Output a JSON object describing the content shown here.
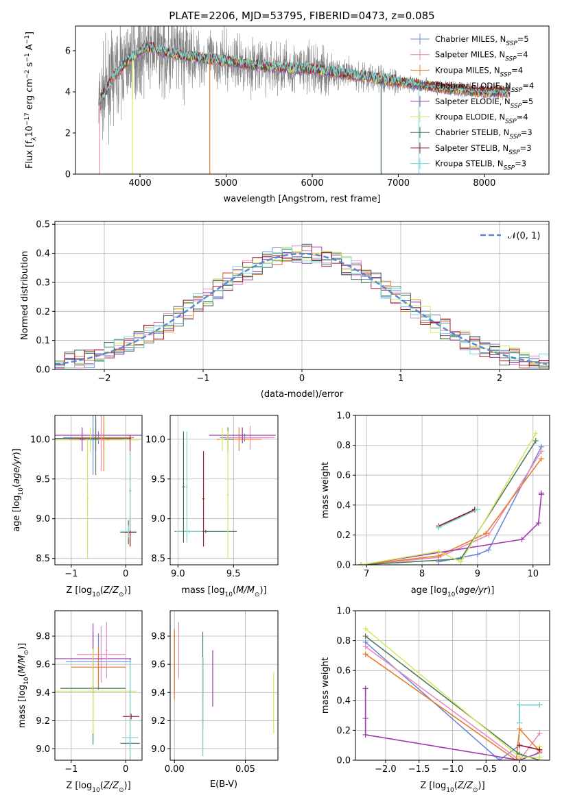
{
  "colors": {
    "series": [
      "#6a8ad8",
      "#e88ac0",
      "#e87d2a",
      "#4d7a5a",
      "#9d3aab",
      "#d4e860",
      "#3e6b55",
      "#9a1f2a",
      "#7fd6d6"
    ],
    "noise": "#808080",
    "gaussian": "#5b86d0"
  },
  "chart_data": [
    {
      "id": "spectrum",
      "type": "line",
      "title": "PLATE=2206, MJD=53795, FIBERID=0473, z=0.085",
      "xlabel": "wavelength [Angstrom, rest frame]",
      "ylabel": "Flux [f_λ10^-17 erg cm^-2 s^-1 A^-1]",
      "xlim": [
        3250,
        8750
      ],
      "ylim": [
        0,
        7.2
      ],
      "xticks": [
        4000,
        5000,
        6000,
        7000,
        8000
      ],
      "yticks": [
        0,
        2,
        4,
        6
      ],
      "xtick_labels": [
        "4000",
        "5000",
        "6000",
        "7000",
        "8000"
      ],
      "ytick_labels": [
        "0",
        "2",
        "4",
        "6"
      ],
      "continuum": {
        "x": [
          3500,
          3700,
          3900,
          4100,
          4300,
          4600,
          5000,
          5500,
          6000,
          6500,
          7000,
          7500,
          8000,
          8300
        ],
        "y": [
          3.3,
          4.8,
          5.7,
          6.2,
          5.9,
          5.7,
          5.5,
          5.2,
          5.1,
          4.8,
          4.5,
          4.2,
          4.0,
          4.0
        ]
      },
      "legend": [
        {
          "label": "Chabrier MILES, N",
          "sub": "SSP",
          "val": "=5"
        },
        {
          "label": "Salpeter MILES, N",
          "sub": "SSP",
          "val": "=4"
        },
        {
          "label": "Kroupa MILES, N",
          "sub": "SSP",
          "val": "=4"
        },
        {
          "label": "Chabrier ELODIE, N",
          "sub": "SSP",
          "val": "=4"
        },
        {
          "label": "Salpeter ELODIE, N",
          "sub": "SSP",
          "val": "=5"
        },
        {
          "label": "Kroupa ELODIE, N",
          "sub": "SSP",
          "val": "=4"
        },
        {
          "label": "Chabrier STELIB, N",
          "sub": "SSP",
          "val": "=3"
        },
        {
          "label": "Salpeter STELIB, N",
          "sub": "SSP",
          "val": "=3"
        },
        {
          "label": "Kroupa STELIB, N",
          "sub": "SSP",
          "val": "=3"
        }
      ],
      "legend_loc": "upper right"
    },
    {
      "id": "residuals",
      "type": "histogram",
      "xlabel": "(data-model)/error",
      "ylabel": "Normed distribution",
      "xlim": [
        -2.5,
        2.5
      ],
      "ylim": [
        0,
        0.51
      ],
      "xticks": [
        -2,
        -1,
        0,
        1,
        2
      ],
      "yticks": [
        0,
        0.1,
        0.2,
        0.3,
        0.4,
        0.5
      ],
      "xtick_labels": [
        "−2",
        "−1",
        "0",
        "1",
        "2"
      ],
      "ytick_labels": [
        "0.0",
        "0.1",
        "0.2",
        "0.3",
        "0.4",
        "0.5"
      ],
      "bin_width": 0.1,
      "gaussian_label": "𝒩(0, 1)",
      "legend_loc": "upper right"
    },
    {
      "id": "age_vs_Z",
      "type": "errorbar",
      "xlabel": "Z [log10(Z/Z⊙)]",
      "ylabel": "age [log10(age/yr)]",
      "xlim": [
        -1.3,
        0.3
      ],
      "ylim": [
        8.42,
        10.3
      ],
      "xticks": [
        -1,
        0
      ],
      "xtick_labels": [
        "−1",
        "0"
      ],
      "yticks": [
        8.5,
        9.0,
        9.5,
        10.0
      ],
      "ytick_labels": [
        "8.5",
        "9.0",
        "9.5",
        "10.0"
      ],
      "points": [
        {
          "x": -0.5,
          "y": 10.02,
          "xerr": 0.65,
          "yerr": 0.08,
          "c": 0
        },
        {
          "x": -0.55,
          "y": 10.0,
          "xerr": 0.5,
          "yerr": 0.15,
          "c": 1
        },
        {
          "x": -0.4,
          "y": 10.02,
          "xerr": 0.55,
          "yerr": 0.15,
          "c": 2
        },
        {
          "x": -0.6,
          "y": 10.01,
          "xerr": 0.7,
          "yerr": 0.15,
          "c": 3
        },
        {
          "x": -0.55,
          "y": 10.05,
          "xerr": 0.85,
          "yerr": 0.2,
          "c": 4
        },
        {
          "x": -0.65,
          "y": 9.99,
          "xerr": 0.9,
          "yerr": 0.15,
          "c": 5
        },
        {
          "x": 0.05,
          "y": 8.83,
          "xerr": 0.15,
          "yerr": 0.15,
          "c": 6
        },
        {
          "x": 0.08,
          "y": 8.83,
          "xerr": 0.1,
          "yerr": 0.17,
          "c": 7
        },
        {
          "x": 0.05,
          "y": 8.84,
          "xerr": 0.15,
          "yerr": 0.08,
          "c": 8
        },
        {
          "x": -0.6,
          "y": 10.0,
          "xerr": 0.1,
          "yerr": 0.45,
          "c": 0
        },
        {
          "x": -0.4,
          "y": 10.0,
          "xerr": 0.1,
          "yerr": 0.4,
          "c": 2
        },
        {
          "x": -0.45,
          "y": 10.0,
          "xerr": 0.1,
          "yerr": 0.4,
          "c": 1
        },
        {
          "x": -0.55,
          "y": 10.0,
          "xerr": 0.05,
          "yerr": 0.45,
          "c": 3
        },
        {
          "x": -0.8,
          "y": 10.0,
          "xerr": 0.05,
          "yerr": 0.15,
          "c": 4
        },
        {
          "x": -0.7,
          "y": 9.25,
          "xerr": 0.02,
          "yerr": 0.75,
          "c": 5
        },
        {
          "x": 0.08,
          "y": 9.35,
          "xerr": 0.02,
          "yerr": 0.7,
          "c": 7
        },
        {
          "x": 0.08,
          "y": 9.35,
          "xerr": 0.02,
          "yerr": 0.5,
          "c": 8
        }
      ]
    },
    {
      "id": "age_vs_mass",
      "type": "errorbar",
      "xlabel": "mass [log10(M/M⊙)]",
      "ylabel": "",
      "xlim": [
        8.93,
        9.9
      ],
      "ylim": [
        8.42,
        10.3
      ],
      "xticks": [
        9.0,
        9.5
      ],
      "xtick_labels": [
        "9.0",
        "9.5"
      ],
      "yticks": [
        8.5,
        9.0,
        9.5,
        10.0
      ],
      "ytick_labels": [
        "8.5",
        "9.0",
        "9.5",
        "10.0"
      ],
      "points": [
        {
          "x": 9.6,
          "y": 10.02,
          "xerr": 0.22,
          "yerr": 0.05,
          "c": 0
        },
        {
          "x": 9.65,
          "y": 10.02,
          "xerr": 0.22,
          "yerr": 0.15,
          "c": 1
        },
        {
          "x": 9.55,
          "y": 10.0,
          "xerr": 0.2,
          "yerr": 0.15,
          "c": 2
        },
        {
          "x": 9.45,
          "y": 10.0,
          "xerr": 0.05,
          "yerr": 0.15,
          "c": 3
        },
        {
          "x": 9.58,
          "y": 10.05,
          "xerr": 0.3,
          "yerr": 0.1,
          "c": 4
        },
        {
          "x": 9.4,
          "y": 10.0,
          "xerr": 0.02,
          "yerr": 0.15,
          "c": 5
        },
        {
          "x": 9.25,
          "y": 8.84,
          "xerr": 0.28,
          "yerr": 0.02,
          "c": 6
        },
        {
          "x": 9.23,
          "y": 9.25,
          "xerr": 0.01,
          "yerr": 0.6,
          "c": 7
        },
        {
          "x": 9.1,
          "y": 8.84,
          "xerr": 0.12,
          "yerr": 0.02,
          "c": 8
        },
        {
          "x": 9.45,
          "y": 9.3,
          "xerr": 0.01,
          "yerr": 0.8,
          "c": 5
        },
        {
          "x": 9.05,
          "y": 9.4,
          "xerr": 0.01,
          "yerr": 0.7,
          "c": 6
        },
        {
          "x": 9.08,
          "y": 9.4,
          "xerr": 0.01,
          "yerr": 0.7,
          "c": 8
        }
      ]
    },
    {
      "id": "weight_vs_age",
      "type": "line",
      "xlabel": "age [log10(age/yr)]",
      "ylabel": "mass weight",
      "xlim": [
        6.8,
        10.3
      ],
      "ylim": [
        0,
        1.0
      ],
      "xticks": [
        7,
        8,
        9,
        10
      ],
      "xtick_labels": [
        "7",
        "8",
        "9",
        "10"
      ],
      "yticks": [
        0,
        0.2,
        0.4,
        0.6,
        0.8,
        1.0
      ],
      "ytick_labels": [
        "0.0",
        "0.2",
        "0.4",
        "0.6",
        "0.8",
        "1.0"
      ],
      "series": [
        {
          "c": 0,
          "x": [
            8.3,
            9.0,
            9.2,
            10.15
          ],
          "y": [
            0.02,
            0.07,
            0.1,
            0.79
          ]
        },
        {
          "c": 1,
          "x": [
            6.9,
            8.3,
            9.2,
            10.15
          ],
          "y": [
            0.0,
            0.05,
            0.2,
            0.76
          ]
        },
        {
          "c": 2,
          "x": [
            6.9,
            8.3,
            9.15,
            10.15
          ],
          "y": [
            0.0,
            0.06,
            0.21,
            0.71
          ]
        },
        {
          "c": 3,
          "x": [
            6.9,
            8.7,
            10.05
          ],
          "y": [
            0.0,
            0.04,
            0.83
          ]
        },
        {
          "c": 4,
          "x": [
            6.9,
            9.8,
            10.1,
            10.15,
            10.15
          ],
          "y": [
            0.0,
            0.17,
            0.28,
            0.47,
            0.48
          ]
        },
        {
          "c": 5,
          "x": [
            6.9,
            8.3,
            8.7,
            10.05
          ],
          "y": [
            0.0,
            0.09,
            0.02,
            0.88
          ]
        },
        {
          "c": 6,
          "x": [
            8.3,
            8.95
          ],
          "y": [
            0.25,
            0.37
          ]
        },
        {
          "c": 7,
          "x": [
            8.3,
            8.95
          ],
          "y": [
            0.26,
            0.37
          ]
        },
        {
          "c": 8,
          "x": [
            8.3,
            9.0
          ],
          "y": [
            0.25,
            0.37
          ]
        }
      ]
    },
    {
      "id": "mass_vs_Z",
      "type": "errorbar",
      "xlabel": "Z [log10(Z/Z⊙)]",
      "ylabel": "mass [log10(M/M⊙)]",
      "xlim": [
        -1.3,
        0.3
      ],
      "ylim": [
        8.92,
        9.98
      ],
      "xticks": [
        -1,
        0
      ],
      "xtick_labels": [
        "−1",
        "0"
      ],
      "yticks": [
        9.0,
        9.2,
        9.4,
        9.6,
        9.8
      ],
      "ytick_labels": [
        "9.0",
        "9.2",
        "9.4",
        "9.6",
        "9.8"
      ],
      "points": [
        {
          "x": -0.5,
          "y": 9.62,
          "xerr": 0.6,
          "yerr": 0.2,
          "c": 0
        },
        {
          "x": -0.45,
          "y": 9.67,
          "xerr": 0.45,
          "yerr": 0.2,
          "c": 1
        },
        {
          "x": -0.5,
          "y": 9.58,
          "xerr": 0.5,
          "yerr": 0.15,
          "c": 2
        },
        {
          "x": -0.6,
          "y": 9.43,
          "xerr": 0.6,
          "yerr": 0.4,
          "c": 3
        },
        {
          "x": -0.6,
          "y": 9.64,
          "xerr": 0.7,
          "yerr": 0.25,
          "c": 4
        },
        {
          "x": -0.6,
          "y": 9.41,
          "xerr": 0.8,
          "yerr": 0.3,
          "c": 5
        },
        {
          "x": 0.08,
          "y": 9.04,
          "xerr": 0.18,
          "yerr": 0.6,
          "c": 6
        },
        {
          "x": 0.1,
          "y": 9.23,
          "xerr": 0.15,
          "yerr": 0.02,
          "c": 7
        },
        {
          "x": 0.08,
          "y": 9.08,
          "xerr": 0.15,
          "yerr": 0.55,
          "c": 8
        },
        {
          "x": -0.35,
          "y": 9.7,
          "xerr": 0.02,
          "yerr": 0.2,
          "c": 1
        }
      ]
    },
    {
      "id": "mass_vs_ebv",
      "type": "errorbar",
      "xlabel": "E(B-V)",
      "ylabel": "",
      "xlim": [
        -0.003,
        0.073
      ],
      "ylim": [
        8.92,
        9.98
      ],
      "xticks": [
        0.0,
        0.05
      ],
      "xtick_labels": [
        "0.00",
        "0.05"
      ],
      "yticks": [
        9.0,
        9.2,
        9.4,
        9.6,
        9.8
      ],
      "ytick_labels": [
        "9.0",
        "9.2",
        "9.4",
        "9.6",
        "9.8"
      ],
      "points": [
        {
          "x": 0.0,
          "y": 9.62,
          "yerr": 0.22,
          "c": 0
        },
        {
          "x": 0.003,
          "y": 9.7,
          "yerr": 0.2,
          "c": 1
        },
        {
          "x": 0.0,
          "y": 9.6,
          "yerr": 0.25,
          "c": 2
        },
        {
          "x": 0.02,
          "y": 9.6,
          "yerr": 0.23,
          "c": 3
        },
        {
          "x": 0.027,
          "y": 9.5,
          "yerr": 0.2,
          "c": 4
        },
        {
          "x": 0.07,
          "y": 9.33,
          "yerr": 0.22,
          "c": 5
        },
        {
          "x": 0.02,
          "y": 9.3,
          "yerr": 0.35,
          "c": 6
        },
        {
          "x": 0.02,
          "y": 9.4,
          "yerr": 0.25,
          "c": 7
        },
        {
          "x": 0.02,
          "y": 9.3,
          "yerr": 0.35,
          "c": 8
        }
      ]
    },
    {
      "id": "weight_vs_Z",
      "type": "line",
      "xlabel": "Z [log10(Z/Z⊙)]",
      "ylabel": "mass weight",
      "xlim": [
        -2.45,
        0.45
      ],
      "ylim": [
        0,
        1.0
      ],
      "xticks": [
        -2.0,
        -1.5,
        -1.0,
        -0.5,
        0.0
      ],
      "xtick_labels": [
        "−2.0",
        "−1.5",
        "−1.0",
        "−0.5",
        "0.0"
      ],
      "yticks": [
        0,
        0.2,
        0.4,
        0.6,
        0.8,
        1.0
      ],
      "ytick_labels": [
        "0.0",
        "0.2",
        "0.4",
        "0.6",
        "0.8",
        "1.0"
      ],
      "series": [
        {
          "c": 0,
          "x": [
            -2.3,
            -0.3,
            0.0,
            0.3
          ],
          "y": [
            0.79,
            0.0,
            0.1,
            0.07
          ]
        },
        {
          "c": 1,
          "x": [
            -2.3,
            0.0,
            0.3
          ],
          "y": [
            0.76,
            0.0,
            0.18
          ]
        },
        {
          "c": 2,
          "x": [
            -2.3,
            -0.05,
            0.0,
            0.3
          ],
          "y": [
            0.71,
            0.0,
            0.21,
            0.06
          ]
        },
        {
          "c": 3,
          "x": [
            -2.3,
            0.0,
            0.3
          ],
          "y": [
            0.83,
            0.04,
            0.0
          ]
        },
        {
          "c": 4,
          "x": [
            -2.3,
            -2.3,
            -2.3,
            0.0,
            0.3
          ],
          "y": [
            0.48,
            0.28,
            0.17,
            0.0,
            0.05
          ]
        },
        {
          "c": 5,
          "x": [
            -2.3,
            0.0,
            0.3,
            0.3
          ],
          "y": [
            0.88,
            0.02,
            0.02,
            0.09
          ]
        },
        {
          "c": 6,
          "x": [
            0.0,
            0.0,
            0.3
          ],
          "y": [
            0.25,
            0.37,
            0.37
          ]
        },
        {
          "c": 7,
          "x": [
            0.0,
            0.3
          ],
          "y": [
            0.1,
            0.07
          ]
        },
        {
          "c": 8,
          "x": [
            0.0,
            0.0,
            0.3
          ],
          "y": [
            0.25,
            0.37,
            0.37
          ]
        }
      ]
    }
  ]
}
